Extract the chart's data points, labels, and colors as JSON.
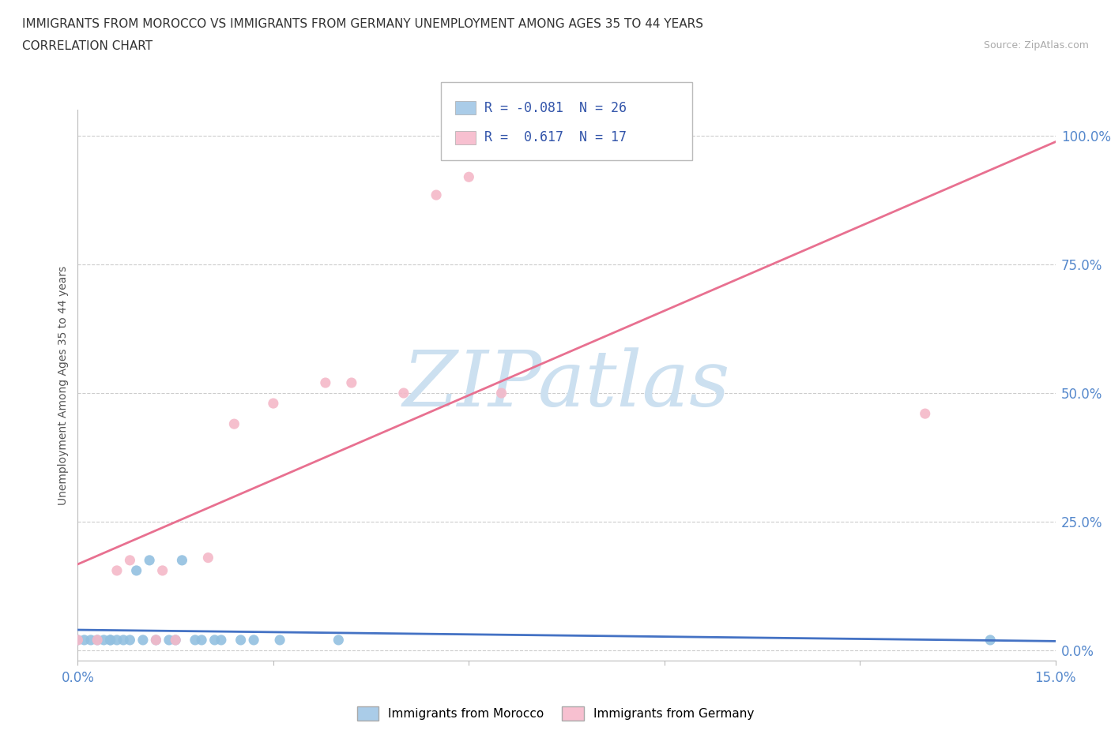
{
  "title_line1": "IMMIGRANTS FROM MOROCCO VS IMMIGRANTS FROM GERMANY UNEMPLOYMENT AMONG AGES 35 TO 44 YEARS",
  "title_line2": "CORRELATION CHART",
  "source_text": "Source: ZipAtlas.com",
  "ylabel": "Unemployment Among Ages 35 to 44 years",
  "xlim": [
    0.0,
    0.15
  ],
  "ylim": [
    -0.02,
    1.05
  ],
  "ytick_values": [
    0.0,
    0.25,
    0.5,
    0.75,
    1.0
  ],
  "grid_color": "#cccccc",
  "morocco_color": "#92c0e0",
  "morocco_line_color": "#4472c4",
  "germany_color": "#f4b8c8",
  "germany_line_color": "#e87090",
  "morocco_R": -0.081,
  "morocco_N": 26,
  "germany_R": 0.617,
  "germany_N": 17,
  "morocco_x": [
    0.0,
    0.001,
    0.002,
    0.003,
    0.004,
    0.005,
    0.005,
    0.006,
    0.007,
    0.008,
    0.009,
    0.01,
    0.011,
    0.012,
    0.014,
    0.015,
    0.016,
    0.018,
    0.019,
    0.021,
    0.022,
    0.025,
    0.027,
    0.031,
    0.04,
    0.14
  ],
  "morocco_y": [
    0.02,
    0.02,
    0.02,
    0.02,
    0.02,
    0.02,
    0.02,
    0.02,
    0.02,
    0.02,
    0.155,
    0.02,
    0.175,
    0.02,
    0.02,
    0.02,
    0.175,
    0.02,
    0.02,
    0.02,
    0.02,
    0.02,
    0.02,
    0.02,
    0.02,
    0.02
  ],
  "germany_x": [
    0.0,
    0.003,
    0.006,
    0.008,
    0.012,
    0.013,
    0.015,
    0.02,
    0.024,
    0.03,
    0.038,
    0.042,
    0.05,
    0.055,
    0.06,
    0.065,
    0.13
  ],
  "germany_y": [
    0.02,
    0.02,
    0.155,
    0.175,
    0.02,
    0.155,
    0.02,
    0.18,
    0.44,
    0.48,
    0.52,
    0.52,
    0.5,
    0.885,
    0.92,
    0.5,
    0.46
  ],
  "watermark_text": "ZIPatlas",
  "watermark_color": "#cce0f0",
  "legend_box_color_morocco": "#aacce8",
  "legend_box_color_germany": "#f7c0d0",
  "legend_text_color": "#3355aa"
}
